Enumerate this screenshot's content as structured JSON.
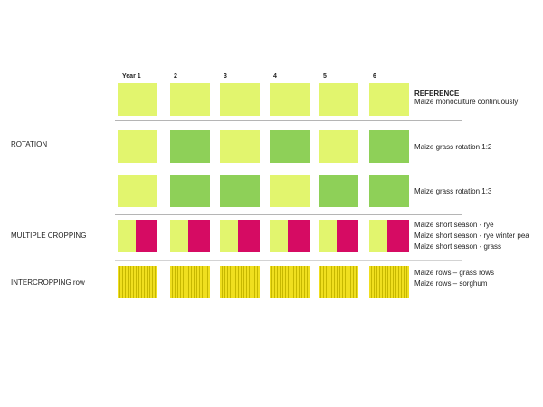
{
  "years": [
    "Year 1",
    "2",
    "3",
    "4",
    "5",
    "6"
  ],
  "colors": {
    "maize": "#e2f56e",
    "grass": "#8ed058",
    "secondary_crop": "#d60b63",
    "intercrop_stripe_light": "#f0df1f",
    "intercrop_stripe_dark": "#c7b800",
    "divider": "#b5b5b5"
  },
  "sections": {
    "rotation": "ROTATION",
    "multiple_cropping": "MULTIPLE CROPPING",
    "intercropping": "INTERCROPPING row"
  },
  "rows": {
    "reference": {
      "title": "REFERENCE",
      "description": "Maize monoculture continuously",
      "pattern": [
        "maize",
        "maize",
        "maize",
        "maize",
        "maize",
        "maize"
      ]
    },
    "rotation_1_2": {
      "description": "Maize grass rotation 1:2",
      "pattern": [
        "maize",
        "grass",
        "maize",
        "grass",
        "maize",
        "grass"
      ]
    },
    "rotation_1_3": {
      "description": "Maize grass rotation 1:3",
      "pattern": [
        "maize",
        "grass",
        "grass",
        "maize",
        "grass",
        "grass"
      ]
    },
    "multiple_cropping": {
      "descriptions": [
        "Maize short season - rye",
        "Maize short season - rye winter pea",
        "Maize short season - grass"
      ],
      "pattern": [
        "split",
        "split",
        "split",
        "split",
        "split",
        "split"
      ]
    },
    "intercropping": {
      "descriptions": [
        "Maize rows – grass rows",
        "Maize rows – sorghum"
      ],
      "pattern": [
        "stripes",
        "stripes",
        "stripes",
        "stripes",
        "stripes",
        "stripes"
      ]
    }
  }
}
